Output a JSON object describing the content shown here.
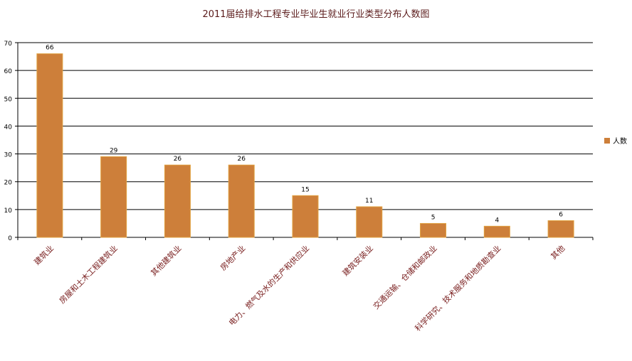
{
  "chart_data": {
    "type": "bar",
    "title": "2011届给排水工程专业毕业生就业行业类型分布人数图",
    "xlabel": "",
    "ylabel": "",
    "categories": [
      "建筑业",
      "房屋和土木工程建筑业",
      "其他建筑业",
      "房地产业",
      "电力、燃气及水的生产和供应业",
      "建筑安装业",
      "交通运输、仓储和邮政业",
      "科学研究、技术服务和地质勘查业",
      "其他"
    ],
    "series": [
      {
        "name": "人数",
        "values": [
          66,
          29,
          26,
          26,
          15,
          11,
          5,
          4,
          6
        ]
      }
    ],
    "ylim": [
      0,
      70
    ],
    "yticks": [
      0,
      10,
      20,
      30,
      40,
      50,
      60,
      70
    ],
    "grid": true,
    "legend": "right",
    "colors": {
      "bar_fill": "#CD7F3A",
      "bar_stroke": "#E0A040",
      "title": "#5A1A1A",
      "category_label": "#7A2020",
      "axis": "#000000",
      "tick_label": "#000000"
    }
  }
}
